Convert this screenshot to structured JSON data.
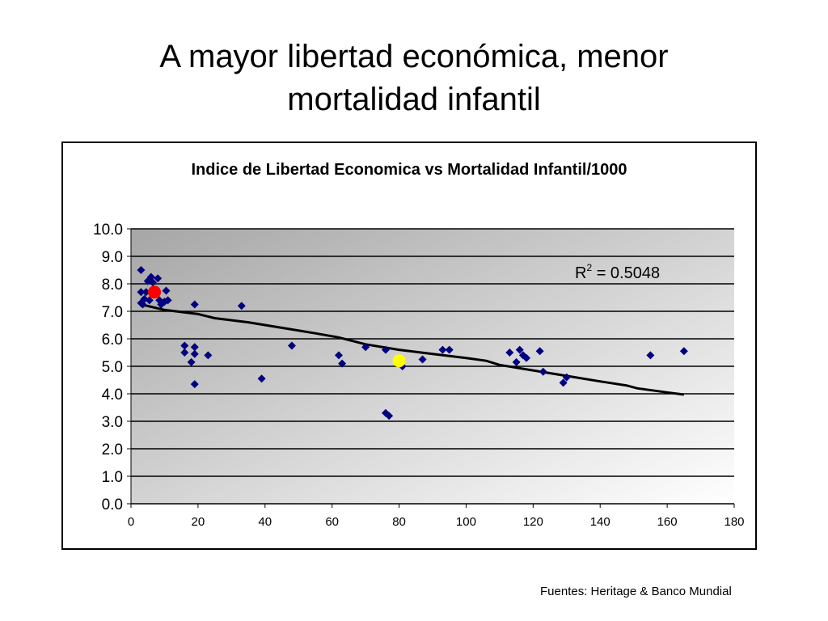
{
  "slide": {
    "title_line1": "A mayor libertad económica, menor",
    "title_line2": "mortalidad infantil",
    "source_note": "Fuentes: Heritage & Banco Mundial"
  },
  "chart_data": {
    "type": "scatter",
    "title": "Indice de Libertad Economica vs Mortalidad Infantil/1000",
    "xlabel": "",
    "ylabel": "",
    "xlim": [
      0,
      180
    ],
    "ylim": [
      0,
      10
    ],
    "x_ticks": [
      "0",
      "20",
      "40",
      "60",
      "80",
      "100",
      "120",
      "140",
      "160",
      "180"
    ],
    "y_ticks": [
      "0.0",
      "1.0",
      "2.0",
      "3.0",
      "4.0",
      "5.0",
      "6.0",
      "7.0",
      "8.0",
      "9.0",
      "10.0"
    ],
    "grid": "horizontal",
    "legend": "none",
    "series": [
      {
        "marker": "diamond",
        "color": "#000080",
        "points": [
          [
            3,
            8.5
          ],
          [
            3,
            7.7
          ],
          [
            3,
            7.3
          ],
          [
            3.5,
            7.25
          ],
          [
            4,
            7.45
          ],
          [
            4.5,
            7.7
          ],
          [
            5,
            8.1
          ],
          [
            5.5,
            7.4
          ],
          [
            6,
            8.25
          ],
          [
            6.5,
            8.05
          ],
          [
            7,
            7.65
          ],
          [
            8,
            8.2
          ],
          [
            8.5,
            7.4
          ],
          [
            9,
            7.25
          ],
          [
            10,
            7.35
          ],
          [
            10.5,
            7.75
          ],
          [
            11,
            7.4
          ],
          [
            16,
            5.75
          ],
          [
            16,
            5.5
          ],
          [
            18,
            5.15
          ],
          [
            19,
            5.7
          ],
          [
            19,
            5.45
          ],
          [
            19,
            4.35
          ],
          [
            19,
            7.25
          ],
          [
            23,
            5.4
          ],
          [
            33,
            7.2
          ],
          [
            39,
            4.55
          ],
          [
            48,
            5.75
          ],
          [
            62,
            5.4
          ],
          [
            63,
            5.1
          ],
          [
            70,
            5.7
          ],
          [
            76,
            5.6
          ],
          [
            76,
            3.3
          ],
          [
            77,
            3.2
          ],
          [
            81,
            5.0
          ],
          [
            87,
            5.25
          ],
          [
            93,
            5.6
          ],
          [
            95,
            5.6
          ],
          [
            113,
            5.5
          ],
          [
            115,
            5.15
          ],
          [
            116,
            5.6
          ],
          [
            117,
            5.4
          ],
          [
            118,
            5.3
          ],
          [
            122,
            5.55
          ],
          [
            123,
            4.8
          ],
          [
            129,
            4.4
          ],
          [
            130,
            4.6
          ],
          [
            155,
            5.4
          ],
          [
            165,
            5.55
          ]
        ]
      },
      {
        "name": "",
        "marker": "circle",
        "color": "#ff0000",
        "points": [
          [
            7,
            7.7
          ]
        ]
      },
      {
        "name": "",
        "marker": "circle",
        "color": "#ffff00",
        "points": [
          [
            80,
            5.2
          ]
        ]
      }
    ],
    "trendline": {
      "label_base": "R",
      "label_sup": "2",
      "label_value": " = 0.5048",
      "points": [
        [
          3,
          7.25
        ],
        [
          10,
          7.05
        ],
        [
          20,
          6.9
        ],
        [
          25,
          6.75
        ],
        [
          35,
          6.6
        ],
        [
          45,
          6.4
        ],
        [
          55,
          6.2
        ],
        [
          62,
          6.05
        ],
        [
          70,
          5.8
        ],
        [
          80,
          5.6
        ],
        [
          90,
          5.45
        ],
        [
          100,
          5.3
        ],
        [
          106,
          5.2
        ],
        [
          110,
          5.05
        ],
        [
          120,
          4.85
        ],
        [
          130,
          4.65
        ],
        [
          140,
          4.45
        ],
        [
          148,
          4.3
        ],
        [
          151,
          4.2
        ],
        [
          160,
          4.05
        ],
        [
          165,
          3.97
        ]
      ]
    },
    "colors": {
      "plot_bg_dark": "#a6a6a6",
      "plot_bg_light": "#ffffff",
      "gridline": "#000000",
      "trendline": "#000000"
    }
  }
}
